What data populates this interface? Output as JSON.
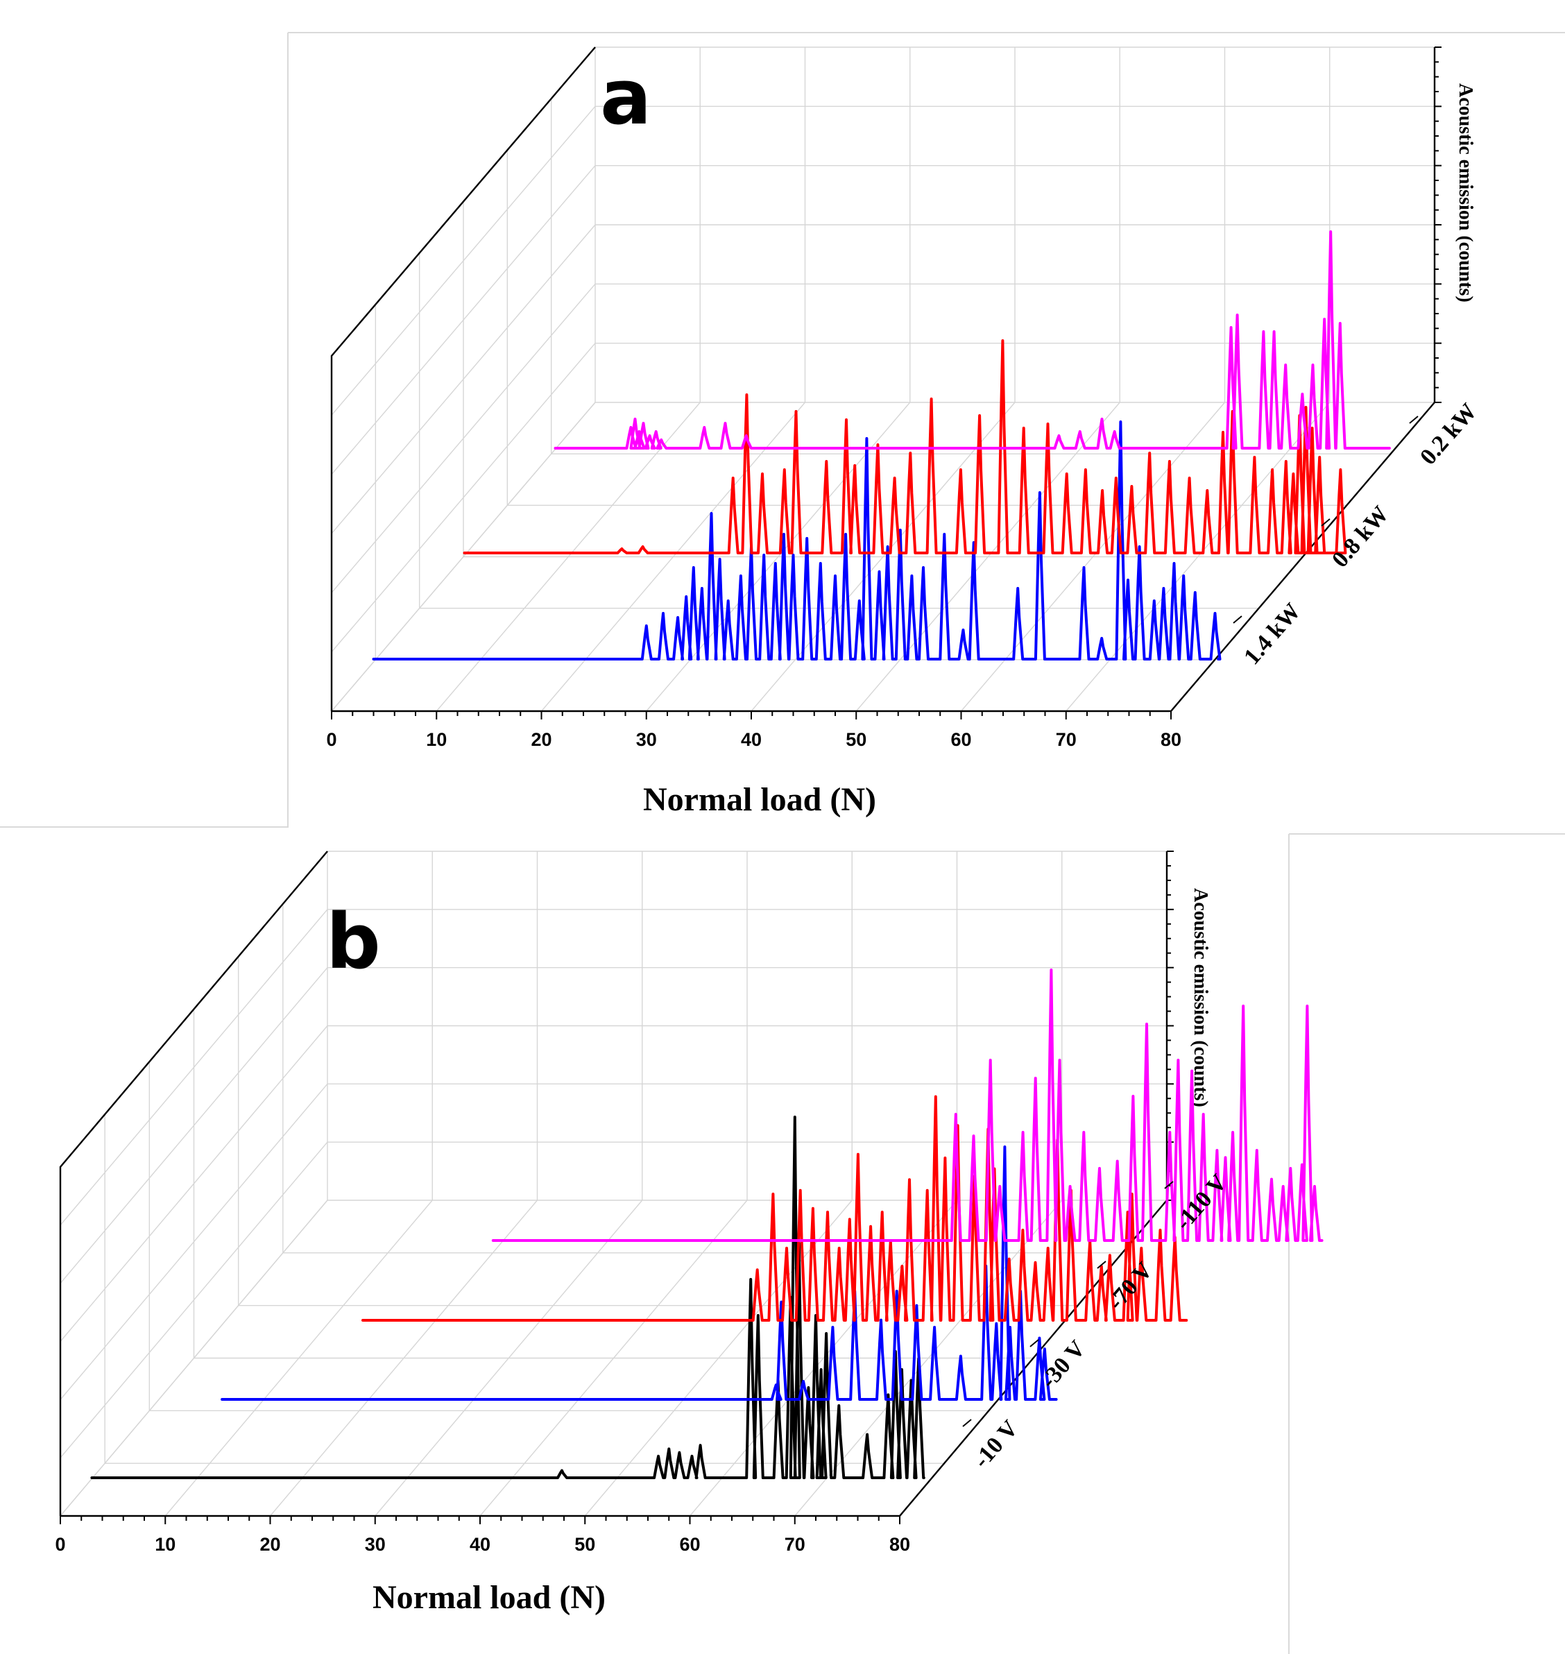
{
  "chart_data": [
    {
      "type": "line",
      "panel_label": "a",
      "projection": "3d-waterfall",
      "xlabel": "Normal load (N)",
      "zlabel": "Acoustic emission (counts)",
      "xlim": [
        0,
        80
      ],
      "x_ticks": [
        0,
        10,
        20,
        30,
        40,
        50,
        60,
        70,
        80
      ],
      "grid": true,
      "series": [
        {
          "name": "1.4 kW",
          "color": "#0000ff",
          "x_start": 4,
          "x_end": 84.5,
          "peaks": [
            [
              30,
              16
            ],
            [
              31.6,
              22
            ],
            [
              33,
              20
            ],
            [
              33.8,
              30
            ],
            [
              34.5,
              44
            ],
            [
              35.3,
              34
            ],
            [
              36.2,
              70
            ],
            [
              37,
              48
            ],
            [
              37.8,
              28
            ],
            [
              39,
              40
            ],
            [
              40,
              54
            ],
            [
              41.2,
              50
            ],
            [
              42.3,
              46
            ],
            [
              43.1,
              60
            ],
            [
              44,
              50
            ],
            [
              45.3,
              58
            ],
            [
              46.6,
              46
            ],
            [
              48,
              40
            ],
            [
              49,
              60
            ],
            [
              50.3,
              28
            ],
            [
              52.2,
              42
            ],
            [
              53,
              54
            ],
            [
              54.2,
              62
            ],
            [
              55.3,
              40
            ],
            [
              56.4,
              44
            ],
            [
              58.4,
              60
            ],
            [
              60.2,
              14
            ],
            [
              61.2,
              56
            ],
            [
              65.4,
              34
            ],
            [
              67.5,
              80
            ],
            [
              71.7,
              44
            ],
            [
              73.4,
              10
            ],
            [
              75.9,
              38
            ],
            [
              77,
              54
            ],
            [
              78.4,
              28
            ],
            [
              79.3,
              34
            ],
            [
              80.3,
              46
            ],
            [
              81.2,
              40
            ],
            [
              82.3,
              32
            ],
            [
              84.2,
              22
            ]
          ],
          "spike": [
            [
              51,
              106
            ],
            [
              75.2,
              114
            ]
          ]
        },
        {
          "name": "0.8 kW",
          "color": "#ff0000",
          "x_start": 4,
          "x_end": 83.5,
          "peaks": [
            [
              19,
              2
            ],
            [
              21,
              3
            ],
            [
              29.6,
              36
            ],
            [
              30.9,
              76
            ],
            [
              32.4,
              38
            ],
            [
              34.5,
              40
            ],
            [
              35.6,
              68
            ],
            [
              38.5,
              44
            ],
            [
              40.4,
              64
            ],
            [
              41.2,
              42
            ],
            [
              43.4,
              52
            ],
            [
              45,
              36
            ],
            [
              46.5,
              48
            ],
            [
              48.5,
              74
            ],
            [
              51.3,
              40
            ],
            [
              53.1,
              66
            ],
            [
              55.3,
              102
            ],
            [
              57.3,
              60
            ],
            [
              59.6,
              62
            ],
            [
              61.4,
              38
            ],
            [
              63.2,
              40
            ],
            [
              64.8,
              30
            ],
            [
              66.1,
              36
            ],
            [
              67.6,
              32
            ],
            [
              69.3,
              48
            ],
            [
              71.2,
              44
            ],
            [
              73.1,
              36
            ],
            [
              74.8,
              30
            ],
            [
              76.3,
              58
            ],
            [
              77.2,
              68
            ],
            [
              79.3,
              46
            ],
            [
              81,
              40
            ],
            [
              82.3,
              44
            ],
            [
              83,
              38
            ],
            [
              83.6,
              66
            ],
            [
              84.2,
              70
            ],
            [
              84.8,
              60
            ],
            [
              85.5,
              46
            ],
            [
              87.5,
              40
            ]
          ],
          "spike": []
        },
        {
          "name": "0.2 kW",
          "color": "#ff00ff",
          "x_start": 4,
          "x_end": 83.5,
          "peaks": [
            [
              11.2,
              10
            ],
            [
              11.6,
              14
            ],
            [
              12,
              8
            ],
            [
              12.4,
              12
            ],
            [
              13,
              6
            ],
            [
              13.6,
              8
            ],
            [
              14.1,
              4
            ],
            [
              18.2,
              10
            ],
            [
              20.2,
              12
            ],
            [
              22.2,
              6
            ],
            [
              52,
              6
            ],
            [
              54,
              8
            ],
            [
              56.1,
              14
            ],
            [
              57.3,
              8
            ],
            [
              68.4,
              58
            ],
            [
              69,
              64
            ],
            [
              71.5,
              56
            ],
            [
              72.5,
              56
            ],
            [
              73.6,
              40
            ],
            [
              75.2,
              26
            ],
            [
              76.2,
              40
            ],
            [
              77.3,
              62
            ],
            [
              77.9,
              104
            ],
            [
              78.8,
              60
            ]
          ],
          "spike": []
        }
      ]
    },
    {
      "type": "line",
      "panel_label": "b",
      "projection": "3d-waterfall",
      "xlabel": "Normal load (N)",
      "zlabel": "Acoustic emission (counts)",
      "xlim": [
        0,
        80
      ],
      "x_ticks": [
        0,
        10,
        20,
        30,
        40,
        50,
        60,
        70,
        80
      ],
      "grid": true,
      "series": [
        {
          "name": "-10 V",
          "color": "#000000",
          "x_start": 3,
          "x_end": 82.3,
          "peaks": [
            [
              47.8,
              4
            ],
            [
              57,
              12
            ],
            [
              58,
              16
            ],
            [
              59,
              14
            ],
            [
              60.2,
              12
            ],
            [
              61,
              18
            ],
            [
              65.8,
              110
            ],
            [
              66.5,
              90
            ],
            [
              68.4,
              54
            ],
            [
              69.6,
              100
            ],
            [
              70,
              200
            ],
            [
              70.4,
              130
            ],
            [
              71.3,
              50
            ],
            [
              72,
              90
            ],
            [
              72.5,
              60
            ],
            [
              73,
              80
            ],
            [
              74.2,
              40
            ],
            [
              76.9,
              24
            ],
            [
              78.9,
              46
            ],
            [
              79.6,
              70
            ],
            [
              80.2,
              60
            ],
            [
              81.1,
              54
            ],
            [
              81.8,
              66
            ]
          ],
          "spike": []
        },
        {
          "name": "-30 V",
          "color": "#0000ff",
          "x_start": 9,
          "x_end": 88.5,
          "peaks": [
            [
              61.8,
              8
            ],
            [
              62.3,
              54
            ],
            [
              64.4,
              10
            ],
            [
              67.2,
              40
            ],
            [
              69.3,
              60
            ],
            [
              71.8,
              44
            ],
            [
              73.3,
              60
            ],
            [
              75.2,
              52
            ],
            [
              76.9,
              40
            ],
            [
              79.4,
              24
            ],
            [
              81.8,
              74
            ],
            [
              82.8,
              42
            ],
            [
              84.1,
              40
            ],
            [
              85.1,
              60
            ],
            [
              86.9,
              34
            ],
            [
              87.4,
              28
            ]
          ],
          "spike": [
            [
              83.6,
              140
            ]
          ]
        },
        {
          "name": "-70 V",
          "color": "#ff0000",
          "x_start": 16,
          "x_end": 94.5,
          "peaks": [
            [
              53.6,
              28
            ],
            [
              55.1,
              70
            ],
            [
              56.4,
              40
            ],
            [
              57.7,
              72
            ],
            [
              58.9,
              62
            ],
            [
              60.3,
              60
            ],
            [
              61.4,
              40
            ],
            [
              62.4,
              56
            ],
            [
              63.2,
              92
            ],
            [
              64.4,
              52
            ],
            [
              65.5,
              60
            ],
            [
              66.3,
              44
            ],
            [
              67.4,
              30
            ],
            [
              68.1,
              78
            ],
            [
              69.8,
              72
            ],
            [
              70.6,
              124
            ],
            [
              71.5,
              90
            ],
            [
              72.7,
              108
            ],
            [
              74.3,
              80
            ],
            [
              75.6,
              106
            ],
            [
              76.2,
              84
            ],
            [
              77.6,
              34
            ],
            [
              78.9,
              50
            ],
            [
              80.1,
              32
            ],
            [
              81.3,
              40
            ],
            [
              82.2,
              100
            ],
            [
              83.5,
              72
            ],
            [
              85.3,
              44
            ],
            [
              86.4,
              30
            ],
            [
              87.2,
              36
            ],
            [
              88.9,
              60
            ],
            [
              89.3,
              70
            ],
            [
              90.2,
              40
            ],
            [
              92,
              50
            ],
            [
              93.4,
              46
            ]
          ],
          "spike": []
        },
        {
          "name": "-110 V",
          "color": "#ff00ff",
          "x_start": 22,
          "x_end": 101,
          "peaks": [
            [
              66.1,
              70
            ],
            [
              67.8,
              58
            ],
            [
              69.4,
              100
            ],
            [
              70.3,
              30
            ],
            [
              72.5,
              60
            ],
            [
              73.7,
              90
            ],
            [
              75.2,
              150
            ],
            [
              76,
              100
            ],
            [
              77,
              30
            ],
            [
              78.3,
              60
            ],
            [
              79.8,
              40
            ],
            [
              81.5,
              44
            ],
            [
              83,
              80
            ],
            [
              84.3,
              120
            ],
            [
              86.5,
              60
            ],
            [
              87.3,
              100
            ],
            [
              88.6,
              94
            ],
            [
              89.7,
              70
            ],
            [
              91,
              50
            ],
            [
              91.8,
              46
            ],
            [
              92.5,
              60
            ],
            [
              93.5,
              130
            ],
            [
              94.8,
              50
            ],
            [
              96.2,
              34
            ],
            [
              97.3,
              30
            ],
            [
              98,
              40
            ],
            [
              99.1,
              42
            ],
            [
              99.6,
              130
            ],
            [
              100.3,
              30
            ]
          ],
          "spike": []
        }
      ]
    }
  ]
}
